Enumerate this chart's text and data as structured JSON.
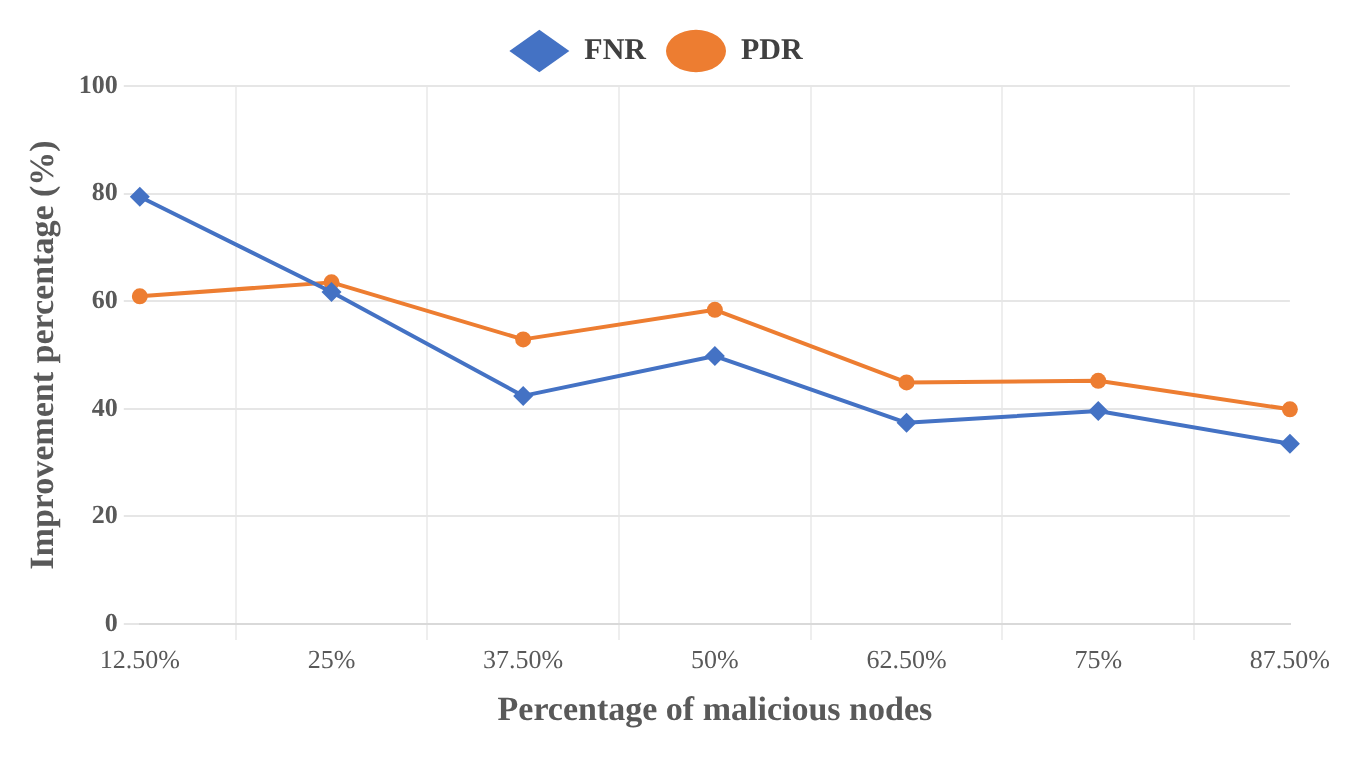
{
  "chart_data": {
    "type": "line",
    "xlabel": "Percentage of malicious nodes",
    "ylabel": "Improvement percentage (%)",
    "categories": [
      "12.50%",
      "25%",
      "37.50%",
      "50%",
      "62.50%",
      "75%",
      "87.50%"
    ],
    "series": [
      {
        "name": "FNR",
        "color": "#4472c4",
        "marker": "diamond",
        "values": [
          79.4,
          61.7,
          42.4,
          49.8,
          37.4,
          39.6,
          33.5
        ]
      },
      {
        "name": "PDR",
        "color": "#ed7d31",
        "marker": "circle",
        "values": [
          60.9,
          63.5,
          52.9,
          58.4,
          44.9,
          45.2,
          39.9
        ]
      }
    ],
    "ylim": [
      0,
      100
    ],
    "yticks": [
      0,
      20,
      40,
      60,
      80,
      100
    ],
    "grid": true,
    "legend": "top",
    "line_style": "solid"
  }
}
